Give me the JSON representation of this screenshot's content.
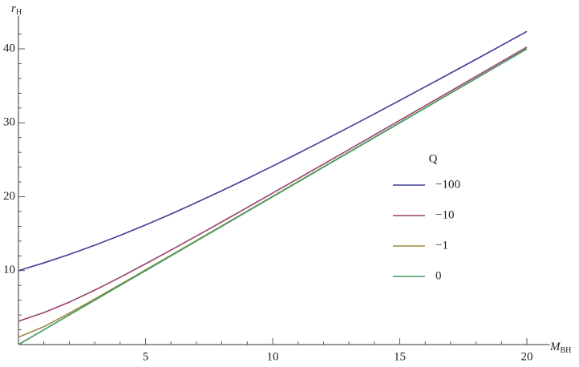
{
  "chart_data": {
    "type": "line",
    "xlabel": {
      "main": "M",
      "sub": "BH"
    },
    "ylabel": {
      "main": "r",
      "sub": "H"
    },
    "legend_title": "Q",
    "x": [
      0,
      1,
      2,
      3,
      4,
      5,
      6,
      7,
      8,
      9,
      10,
      11,
      12,
      13,
      14,
      15,
      16,
      17,
      18,
      19,
      20
    ],
    "series": [
      {
        "name": "−100",
        "color": "#3f3d99",
        "values": [
          10,
          11.05,
          12.2,
          13.44,
          14.77,
          16.18,
          17.66,
          19.21,
          20.81,
          22.45,
          24.14,
          25.87,
          27.62,
          29.4,
          31.2,
          33.03,
          34.87,
          36.72,
          38.59,
          40.47,
          42.36
        ]
      },
      {
        "name": "−10",
        "color": "#99406f",
        "values": [
          3.16,
          4.32,
          5.74,
          7.36,
          9.1,
          10.92,
          12.78,
          14.68,
          16.6,
          18.54,
          20.49,
          22.45,
          24.41,
          26.38,
          28.35,
          30.33,
          32.31,
          34.29,
          36.28,
          38.26,
          40.25
        ]
      },
      {
        "name": "−1",
        "color": "#a08c40",
        "values": [
          1,
          2.41,
          4.24,
          6.16,
          8.12,
          10.1,
          12.08,
          14.07,
          16.06,
          18.06,
          20.05,
          22.05,
          24.04,
          26.04,
          28.04,
          30.03,
          32.03,
          34.03,
          36.03,
          38.03,
          40.02
        ]
      },
      {
        "name": "0",
        "color": "#40995f",
        "values": [
          0,
          2,
          4,
          6,
          8,
          10,
          12,
          14,
          16,
          18,
          20,
          22,
          24,
          26,
          28,
          30,
          32,
          34,
          36,
          38,
          40
        ]
      }
    ],
    "xlim": [
      0,
      20.9
    ],
    "ylim": [
      0,
      44.5
    ],
    "xticks": [
      5,
      10,
      15,
      20
    ],
    "yticks": [
      10,
      20,
      30,
      40
    ],
    "xminor": [
      1,
      2,
      3,
      4,
      6,
      7,
      8,
      9,
      11,
      12,
      13,
      14,
      16,
      17,
      18,
      19
    ],
    "yminor": [
      2,
      4,
      6,
      8,
      12,
      14,
      16,
      18,
      22,
      24,
      26,
      28,
      32,
      34,
      36,
      38,
      42
    ],
    "legend": "right"
  }
}
